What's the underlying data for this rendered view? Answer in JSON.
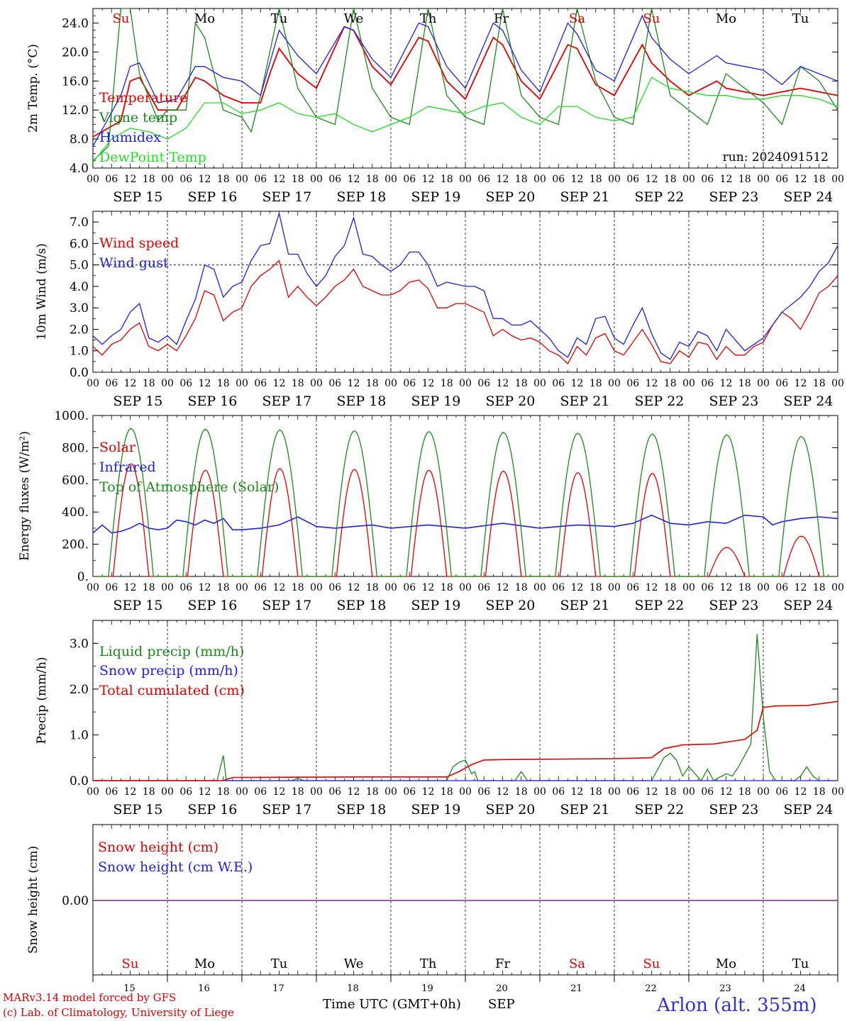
{
  "x_axis": {
    "hour_ticks": [
      "00",
      "06",
      "12",
      "18"
    ],
    "end_tick": "00",
    "dates": [
      "SEP 15",
      "SEP 16",
      "SEP 17",
      "SEP 18",
      "SEP 19",
      "SEP 20",
      "SEP 21",
      "SEP 22",
      "SEP 23",
      "SEP 24"
    ],
    "weekdays": [
      "Su",
      "Mo",
      "Tu",
      "We",
      "Th",
      "Fr",
      "Sa",
      "Su",
      "Mo",
      "Tu"
    ],
    "weekday_colors": [
      "#e00000",
      "#000000",
      "#000000",
      "#000000",
      "#000000",
      "#000000",
      "#e00000",
      "#e00000",
      "#000000",
      "#000000"
    ],
    "day_numbers": [
      "15",
      "16",
      "17",
      "18",
      "19",
      "20",
      "21",
      "22",
      "23",
      "24"
    ]
  },
  "footer": {
    "model_line": "MARv3.14 model forced by GFS",
    "credit_line": "(c) Lab. of Climatology, University of Liege",
    "time_label": "Time UTC (GMT+0h)",
    "month_label": "SEP",
    "station": "Arlon (alt. 355m)"
  },
  "chart_data": [
    {
      "type": "line",
      "ylabel": "2m Temp. (°C)",
      "ylim": [
        4,
        26
      ],
      "yticks": [
        "4.0",
        "8.0",
        "12.0",
        "16.0",
        "20.0",
        "24.0"
      ],
      "annotation": "run: 2024091512",
      "series": [
        {
          "name": "Temperature",
          "color": "#e00000",
          "x_hours": [
            0,
            9,
            12,
            15,
            21,
            27,
            33,
            36,
            42,
            48,
            54,
            57,
            60,
            66,
            72,
            81,
            84,
            90,
            96,
            105,
            108,
            114,
            120,
            129,
            132,
            138,
            144,
            153,
            156,
            162,
            168,
            177,
            180,
            186,
            192,
            201,
            204,
            210,
            216,
            228,
            240
          ],
          "values": [
            8.3,
            10.5,
            16.0,
            16.5,
            12.0,
            12.0,
            16.5,
            16.0,
            14.0,
            13.0,
            13.0,
            17.0,
            20.5,
            17.0,
            15.0,
            23.5,
            23.0,
            18.0,
            15.5,
            22.0,
            21.5,
            16.0,
            13.5,
            22.0,
            21.0,
            16.0,
            13.5,
            21.0,
            20.5,
            15.5,
            14.0,
            21.0,
            18.5,
            16.0,
            14.0,
            16.0,
            15.0,
            14.5,
            14.0,
            15.0,
            14.0
          ]
        },
        {
          "name": "Vigne temp",
          "color": "#1a8a1a",
          "x_hours": [
            0,
            5,
            9,
            12,
            15,
            21,
            24,
            30,
            33,
            36,
            42,
            48,
            51,
            54,
            60,
            66,
            72,
            78,
            84,
            90,
            96,
            102,
            108,
            114,
            120,
            126,
            132,
            138,
            144,
            150,
            156,
            162,
            168,
            174,
            180,
            186,
            192,
            198,
            204,
            210,
            216,
            222,
            228,
            234,
            240
          ],
          "values": [
            5.0,
            7.0,
            26.0,
            26.0,
            17.0,
            10.5,
            12.0,
            12.0,
            24.0,
            22.0,
            12.0,
            11.0,
            9.0,
            14.0,
            26.0,
            15.0,
            11.0,
            10.0,
            26.0,
            15.0,
            11.0,
            10.0,
            26.0,
            14.0,
            11.0,
            10.0,
            26.0,
            14.0,
            11.0,
            10.0,
            26.0,
            16.0,
            11.0,
            10.0,
            26.0,
            14.0,
            12.0,
            10.0,
            17.0,
            15.0,
            13.0,
            10.0,
            18.0,
            16.0,
            12.0
          ]
        },
        {
          "name": "Humidex",
          "color": "#2020e0",
          "x_hours": [
            0,
            9,
            12,
            15,
            21,
            27,
            33,
            36,
            42,
            48,
            54,
            57,
            60,
            66,
            72,
            81,
            84,
            90,
            96,
            105,
            108,
            114,
            120,
            129,
            132,
            138,
            144,
            153,
            156,
            162,
            168,
            177,
            180,
            186,
            192,
            201,
            204,
            210,
            216,
            222,
            228,
            240
          ],
          "values": [
            7.0,
            14.0,
            18.0,
            18.5,
            13.0,
            13.5,
            18.0,
            18.0,
            16.5,
            16.0,
            14.0,
            18.5,
            23.0,
            19.5,
            17.0,
            23.5,
            23.0,
            19.0,
            16.5,
            24.0,
            23.5,
            18.0,
            15.0,
            24.0,
            23.0,
            17.5,
            14.5,
            24.0,
            22.5,
            17.5,
            16.0,
            25.0,
            22.0,
            19.0,
            17.0,
            19.5,
            18.5,
            18.0,
            17.5,
            15.5,
            18.0,
            16.0
          ]
        },
        {
          "name": "DewPoint Temp",
          "color": "#22dd22",
          "x_hours": [
            0,
            6,
            12,
            18,
            24,
            30,
            36,
            42,
            48,
            54,
            60,
            66,
            72,
            78,
            84,
            90,
            96,
            102,
            108,
            114,
            120,
            126,
            132,
            138,
            144,
            150,
            156,
            162,
            168,
            174,
            180,
            186,
            192,
            198,
            204,
            210,
            216,
            222,
            228,
            234,
            240
          ],
          "values": [
            4.8,
            8.0,
            9.5,
            9.0,
            8.0,
            9.5,
            13.0,
            13.0,
            11.5,
            12.0,
            13.0,
            11.5,
            11.0,
            11.5,
            10.0,
            9.0,
            10.0,
            11.0,
            12.5,
            12.0,
            11.5,
            12.5,
            13.0,
            11.0,
            10.0,
            12.5,
            12.5,
            11.0,
            10.5,
            11.0,
            16.5,
            15.0,
            14.5,
            14.0,
            14.0,
            13.5,
            13.5,
            14.0,
            14.0,
            13.5,
            12.5
          ]
        }
      ]
    },
    {
      "type": "line",
      "ylabel": "10m Wind (m/s)",
      "ylim": [
        0,
        7.5
      ],
      "yticks": [
        "0.0",
        "1.0",
        "2.0",
        "3.0",
        "4.0",
        "5.0",
        "6.0",
        "7.0"
      ],
      "reference_line": 5.0,
      "series": [
        {
          "name": "Wind speed",
          "color": "#e00000",
          "x_hours": [
            0,
            3,
            6,
            9,
            12,
            15,
            18,
            21,
            24,
            27,
            30,
            33,
            36,
            39,
            42,
            45,
            48,
            51,
            54,
            57,
            60,
            63,
            66,
            69,
            72,
            75,
            78,
            81,
            84,
            87,
            90,
            93,
            96,
            99,
            102,
            105,
            108,
            111,
            114,
            117,
            120,
            123,
            126,
            129,
            132,
            135,
            138,
            141,
            144,
            147,
            150,
            153,
            156,
            159,
            162,
            165,
            168,
            171,
            174,
            177,
            180,
            183,
            186,
            189,
            192,
            195,
            198,
            201,
            204,
            207,
            210,
            213,
            216,
            219,
            222,
            225,
            228,
            231,
            234,
            237,
            240
          ],
          "values": [
            1.2,
            0.8,
            1.3,
            1.5,
            2.0,
            2.3,
            1.2,
            1.0,
            1.3,
            1.0,
            1.7,
            2.5,
            3.8,
            3.6,
            2.4,
            2.8,
            3.0,
            4.0,
            4.5,
            4.8,
            5.2,
            3.5,
            4.0,
            3.5,
            3.1,
            3.5,
            4.0,
            4.3,
            4.8,
            4.0,
            3.8,
            3.6,
            3.6,
            3.8,
            4.2,
            4.3,
            3.9,
            3.0,
            3.0,
            3.2,
            3.2,
            3.0,
            2.8,
            1.7,
            2.0,
            1.7,
            1.5,
            1.6,
            1.4,
            1.0,
            0.8,
            0.4,
            1.2,
            0.8,
            1.6,
            1.8,
            1.0,
            0.8,
            1.4,
            2.0,
            1.3,
            0.5,
            0.4,
            1.0,
            0.7,
            1.4,
            1.3,
            0.6,
            1.2,
            0.8,
            0.8,
            1.2,
            1.4,
            2.2,
            2.8,
            2.5,
            2.0,
            2.8,
            3.7,
            4.0,
            4.5
          ]
        },
        {
          "name": "Wind gust",
          "color": "#2020e0",
          "x_hours": [
            0,
            3,
            6,
            9,
            12,
            15,
            18,
            21,
            24,
            27,
            30,
            33,
            36,
            39,
            42,
            45,
            48,
            51,
            54,
            57,
            60,
            63,
            66,
            69,
            72,
            75,
            78,
            81,
            84,
            87,
            90,
            93,
            96,
            99,
            102,
            105,
            108,
            111,
            114,
            117,
            120,
            123,
            126,
            129,
            132,
            135,
            138,
            141,
            144,
            147,
            150,
            153,
            156,
            159,
            162,
            165,
            168,
            171,
            174,
            177,
            180,
            183,
            186,
            189,
            192,
            195,
            198,
            201,
            204,
            210,
            216,
            222,
            228,
            231,
            234,
            237,
            240
          ],
          "values": [
            1.7,
            1.3,
            1.7,
            2.0,
            2.8,
            3.2,
            1.6,
            1.4,
            1.7,
            1.3,
            2.4,
            3.4,
            5.0,
            4.8,
            3.5,
            4.0,
            4.2,
            5.2,
            5.9,
            6.0,
            7.4,
            5.5,
            5.5,
            4.6,
            4.0,
            4.5,
            5.4,
            5.9,
            7.2,
            5.5,
            5.4,
            5.0,
            4.7,
            5.0,
            5.6,
            5.6,
            5.0,
            4.0,
            4.2,
            4.1,
            4.0,
            4.0,
            3.8,
            2.5,
            2.5,
            2.2,
            2.2,
            2.4,
            2.0,
            1.6,
            1.0,
            0.7,
            1.6,
            1.3,
            2.5,
            2.6,
            1.6,
            1.3,
            2.2,
            3.0,
            1.8,
            0.9,
            0.6,
            1.4,
            1.2,
            1.9,
            1.7,
            1.0,
            2.0,
            1.0,
            1.6,
            2.8,
            3.5,
            4.0,
            4.7,
            5.1,
            5.9
          ]
        }
      ]
    },
    {
      "type": "line",
      "ylabel": "Energy fluxes (W/m²)",
      "ylim": [
        0,
        1000
      ],
      "yticks": [
        "0.",
        "200.",
        "400.",
        "600.",
        "800.",
        "1000."
      ],
      "series": [
        {
          "name": "Solar",
          "color": "#e00000",
          "peaks": [
            700,
            660,
            670,
            665,
            660,
            655,
            645,
            640,
            180,
            250
          ]
        },
        {
          "name": "Infrared",
          "color": "#2020e0",
          "x_hours": [
            0,
            3,
            6,
            9,
            12,
            15,
            18,
            21,
            24,
            27,
            30,
            33,
            36,
            39,
            42,
            45,
            48,
            54,
            60,
            66,
            72,
            78,
            84,
            90,
            96,
            108,
            120,
            132,
            144,
            156,
            168,
            174,
            180,
            186,
            192,
            198,
            204,
            210,
            216,
            219,
            222,
            228,
            234,
            240
          ],
          "values": [
            270,
            320,
            270,
            280,
            300,
            330,
            300,
            290,
            300,
            350,
            340,
            320,
            350,
            330,
            360,
            290,
            290,
            300,
            320,
            370,
            310,
            300,
            310,
            320,
            300,
            320,
            300,
            330,
            300,
            320,
            310,
            330,
            380,
            330,
            320,
            340,
            330,
            380,
            370,
            320,
            340,
            360,
            370,
            360
          ]
        },
        {
          "name": "Top of Atmosphere (Solar)",
          "color": "#1a8a1a",
          "peaks": [
            920,
            915,
            910,
            905,
            900,
            895,
            890,
            885,
            880,
            870
          ]
        }
      ]
    },
    {
      "type": "line",
      "ylabel": "Precip (mm/h)",
      "ylim": [
        0,
        3.5
      ],
      "yticks": [
        "0.0",
        "1.0",
        "2.0",
        "3.0"
      ],
      "series": [
        {
          "name": "Liquid precip (mm/h)",
          "color": "#1a8a1a",
          "x_hours": [
            0,
            40,
            42,
            43,
            44,
            64,
            66,
            68,
            114,
            116,
            118,
            120,
            122,
            123,
            124,
            130,
            136,
            138,
            140,
            180,
            184,
            186,
            188,
            190,
            192,
            196,
            198,
            200,
            204,
            206,
            208,
            212,
            214,
            216,
            218,
            220,
            222,
            224,
            226,
            228,
            230,
            232,
            234,
            240
          ],
          "values": [
            0,
            0,
            0.55,
            0,
            0,
            0,
            0.05,
            0,
            0,
            0.3,
            0.4,
            0.45,
            0.15,
            0.2,
            0,
            0,
            0,
            0.2,
            0,
            0,
            0.5,
            0.6,
            0.45,
            0.1,
            0.3,
            0,
            0.25,
            0,
            0.15,
            0.1,
            0.3,
            0.8,
            3.2,
            1.4,
            0.2,
            0,
            0,
            0,
            0,
            0.1,
            0.3,
            0.1,
            0,
            0
          ]
        },
        {
          "name": "Snow precip (mm/h)",
          "color": "#2020e0",
          "x_hours": [
            0,
            240
          ],
          "values": [
            0,
            0
          ]
        },
        {
          "name": "Total cumulated (cm)",
          "color": "#e00000",
          "x_hours": [
            0,
            42,
            45,
            90,
            114,
            118,
            122,
            126,
            132,
            168,
            180,
            184,
            190,
            200,
            210,
            214,
            216,
            220,
            230,
            240
          ],
          "values": [
            0,
            0,
            0.07,
            0.08,
            0.08,
            0.2,
            0.35,
            0.45,
            0.46,
            0.48,
            0.5,
            0.7,
            0.78,
            0.8,
            0.9,
            1.1,
            1.6,
            1.63,
            1.64,
            1.73
          ]
        }
      ]
    },
    {
      "type": "line",
      "ylabel": "Snow height (cm)",
      "yticks": [
        "0.00"
      ],
      "series": [
        {
          "name": "Snow height (cm)",
          "color": "#e00000",
          "x_hours": [
            0,
            240
          ],
          "values": [
            0,
            0
          ]
        },
        {
          "name": "Snow height (cm W.E.)",
          "color": "#2020e0",
          "x_hours": [
            0,
            240
          ],
          "values": [
            0,
            0
          ]
        }
      ]
    }
  ]
}
